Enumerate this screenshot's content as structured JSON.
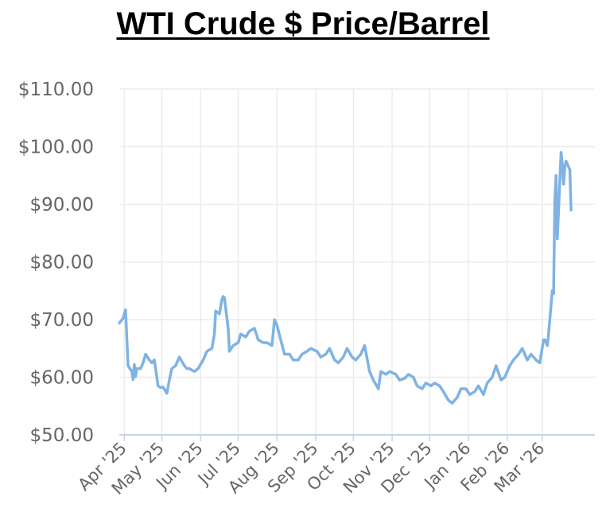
{
  "chart_data": {
    "type": "line",
    "title": "WTI Crude $ Price/Barrel",
    "xlabel": "",
    "ylabel": "",
    "ylim": [
      50,
      110
    ],
    "xlim": [
      "2025-03-28",
      "2026-04-12"
    ],
    "grid": true,
    "colors": {
      "line": "#7fb3e3",
      "grid": "#ececec",
      "axis": "#c9d4e0",
      "tick_text": "#666666",
      "title": "#000000"
    },
    "yticks": [
      {
        "value": 50,
        "label": "$50.00"
      },
      {
        "value": 60,
        "label": "$60.00"
      },
      {
        "value": 70,
        "label": "$70.00"
      },
      {
        "value": 80,
        "label": "$80.00"
      },
      {
        "value": 90,
        "label": "$90.00"
      },
      {
        "value": 100,
        "label": "$100.00"
      },
      {
        "value": 110,
        "label": "$110.00"
      }
    ],
    "xticks": [
      {
        "value": "2025-04-01",
        "label": "Apr '25"
      },
      {
        "value": "2025-05-01",
        "label": "May '25"
      },
      {
        "value": "2025-06-01",
        "label": "Jun '25"
      },
      {
        "value": "2025-07-01",
        "label": "Jul '25"
      },
      {
        "value": "2025-08-01",
        "label": "Aug '25"
      },
      {
        "value": "2025-09-01",
        "label": "Sep '25"
      },
      {
        "value": "2025-10-01",
        "label": "Oct '25"
      },
      {
        "value": "2025-11-01",
        "label": "Nov '25"
      },
      {
        "value": "2025-12-01",
        "label": "Dec '25"
      },
      {
        "value": "2026-01-01",
        "label": "Jan '26"
      },
      {
        "value": "2026-02-01",
        "label": "Feb '26"
      },
      {
        "value": "2026-03-01",
        "label": "Mar '26"
      }
    ],
    "series": [
      {
        "x": [
          "2025-03-28",
          "2025-03-31",
          "2025-04-01",
          "2025-04-02",
          "2025-04-03",
          "2025-04-04",
          "2025-04-07",
          "2025-04-08",
          "2025-04-09",
          "2025-04-10",
          "2025-04-11",
          "2025-04-14",
          "2025-04-16",
          "2025-04-18",
          "2025-04-21",
          "2025-04-23",
          "2025-04-25",
          "2025-04-28",
          "2025-04-30",
          "2025-05-02",
          "2025-05-05",
          "2025-05-07",
          "2025-05-09",
          "2025-05-12",
          "2025-05-15",
          "2025-05-19",
          "2025-05-21",
          "2025-05-23",
          "2025-05-27",
          "2025-05-30",
          "2025-06-03",
          "2025-06-06",
          "2025-06-10",
          "2025-06-12",
          "2025-06-13",
          "2025-06-16",
          "2025-06-18",
          "2025-06-19",
          "2025-06-20",
          "2025-06-23",
          "2025-06-24",
          "2025-06-27",
          "2025-07-01",
          "2025-07-03",
          "2025-07-07",
          "2025-07-10",
          "2025-07-14",
          "2025-07-17",
          "2025-07-21",
          "2025-07-24",
          "2025-07-28",
          "2025-07-30",
          "2025-08-01",
          "2025-08-04",
          "2025-08-07",
          "2025-08-11",
          "2025-08-14",
          "2025-08-18",
          "2025-08-21",
          "2025-08-25",
          "2025-08-28",
          "2025-09-02",
          "2025-09-05",
          "2025-09-09",
          "2025-09-12",
          "2025-09-16",
          "2025-09-19",
          "2025-09-23",
          "2025-09-26",
          "2025-09-30",
          "2025-10-03",
          "2025-10-07",
          "2025-10-10",
          "2025-10-14",
          "2025-10-17",
          "2025-10-21",
          "2025-10-23",
          "2025-10-27",
          "2025-10-30",
          "2025-11-04",
          "2025-11-07",
          "2025-11-11",
          "2025-11-14",
          "2025-11-18",
          "2025-11-21",
          "2025-11-25",
          "2025-11-28",
          "2025-12-02",
          "2025-12-05",
          "2025-12-09",
          "2025-12-12",
          "2025-12-16",
          "2025-12-19",
          "2025-12-23",
          "2025-12-26",
          "2025-12-30",
          "2026-01-02",
          "2026-01-06",
          "2026-01-09",
          "2026-01-13",
          "2026-01-16",
          "2026-01-20",
          "2026-01-23",
          "2026-01-27",
          "2026-01-30",
          "2026-02-03",
          "2026-02-06",
          "2026-02-10",
          "2026-02-13",
          "2026-02-17",
          "2026-02-20",
          "2026-02-24",
          "2026-02-27",
          "2026-03-02",
          "2026-03-03",
          "2026-03-04",
          "2026-03-05",
          "2026-03-06",
          "2026-03-09",
          "2026-03-10",
          "2026-03-11",
          "2026-03-12",
          "2026-03-13",
          "2026-03-16",
          "2026-03-17",
          "2026-03-18",
          "2026-03-19",
          "2026-03-20",
          "2026-03-23",
          "2026-03-24"
        ],
        "y": [
          69.4,
          70.2,
          71.0,
          71.7,
          66.9,
          62.0,
          61.0,
          59.6,
          62.2,
          60.1,
          61.5,
          61.5,
          62.5,
          64.0,
          63.0,
          62.5,
          63.0,
          58.5,
          58.2,
          58.3,
          57.2,
          59.5,
          61.5,
          62.0,
          63.5,
          62.0,
          61.5,
          61.5,
          61.0,
          61.5,
          63.0,
          64.5,
          65.0,
          67.5,
          71.5,
          71.0,
          73.5,
          74.0,
          73.8,
          68.5,
          64.5,
          65.5,
          66.0,
          67.5,
          67.0,
          68.0,
          68.5,
          66.5,
          66.0,
          66.0,
          65.5,
          70.0,
          69.0,
          66.5,
          64.0,
          64.0,
          63.0,
          63.0,
          64.0,
          64.5,
          65.0,
          64.5,
          63.5,
          64.0,
          65.0,
          63.0,
          62.5,
          63.5,
          65.0,
          63.5,
          63.0,
          64.0,
          65.5,
          61.0,
          59.5,
          58.0,
          61.0,
          60.5,
          61.0,
          60.5,
          59.5,
          59.8,
          60.5,
          60.0,
          58.5,
          58.0,
          59.0,
          58.5,
          59.0,
          58.5,
          57.5,
          56.0,
          55.5,
          56.5,
          58.0,
          58.0,
          57.0,
          57.5,
          58.5,
          57.0,
          59.0,
          60.0,
          62.0,
          59.5,
          60.0,
          62.0,
          63.0,
          64.0,
          65.0,
          63.0,
          64.0,
          63.0,
          62.5,
          66.5,
          66.5,
          66.0,
          65.5,
          67.5,
          75.0,
          74.5,
          90.5,
          95.0,
          84.0,
          99.0,
          97.0,
          93.5,
          96.5,
          97.5,
          96.0,
          89.0
        ]
      }
    ]
  }
}
